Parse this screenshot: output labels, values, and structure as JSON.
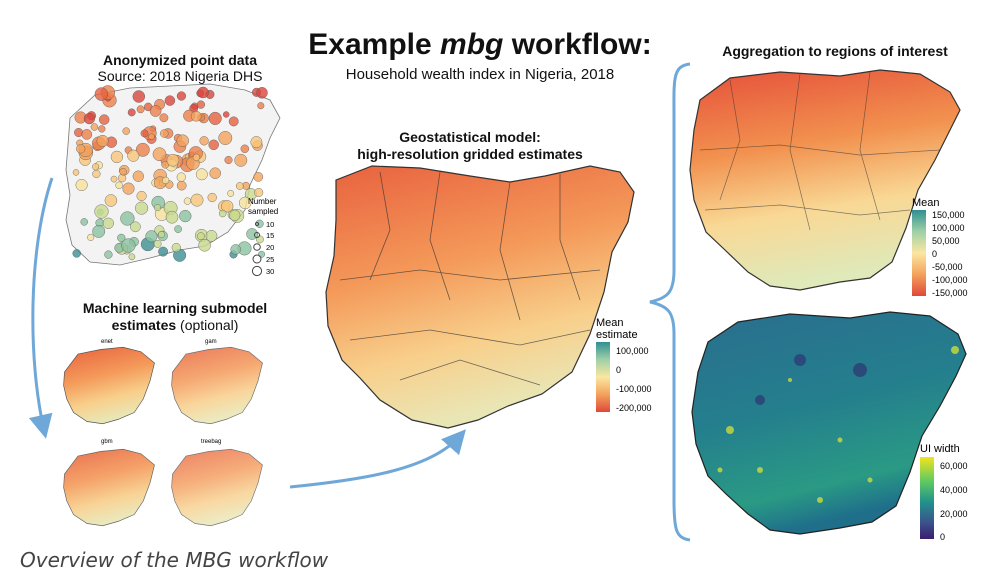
{
  "title": {
    "main_prefix": "Example ",
    "main_italic": "mbg",
    "main_suffix": " workflow:",
    "subtitle": "Household wealth index in Nigeria, 2018"
  },
  "point_data": {
    "title": "Anonymized point data",
    "source": "Source: 2018 Nigeria DHS",
    "legend_title_line1": "Number",
    "legend_title_line2": "sampled",
    "legend_values": [
      "10",
      "15",
      "20",
      "25",
      "30"
    ]
  },
  "ml_submodels": {
    "title_line1": "Machine learning submodel",
    "title_line2_bold": "estimates",
    "title_line2_norm": " (optional)",
    "panels": [
      "enet",
      "gam",
      "gbm",
      "treebag"
    ]
  },
  "geostat": {
    "title_line1": "Geostatistical model:",
    "title_line2": "high-resolution gridded estimates",
    "legend_title_line1": "Mean",
    "legend_title_line2": "estimate",
    "legend_ticks": [
      "100,000",
      "0",
      "-100,000",
      "-200,000"
    ]
  },
  "aggregation": {
    "title": "Aggregation to regions of interest",
    "mean_legend_title": "Mean",
    "mean_legend_ticks": [
      "150,000",
      "100,000",
      "50,000",
      "0",
      "-50,000",
      "-100,000",
      "-150,000"
    ],
    "ui_legend_title": "UI width",
    "ui_legend_ticks": [
      "60,000",
      "40,000",
      "20,000",
      "0"
    ]
  },
  "caption": "Overview of the MBG workflow",
  "colors": {
    "arrow": "#6fa8d8",
    "wealth_low": "#e0483a",
    "wealth_mid": "#fbe7a1",
    "wealth_high": "#2f8f93",
    "viridis_low": "#3b1d6f",
    "viridis_high": "#f1e51d"
  }
}
